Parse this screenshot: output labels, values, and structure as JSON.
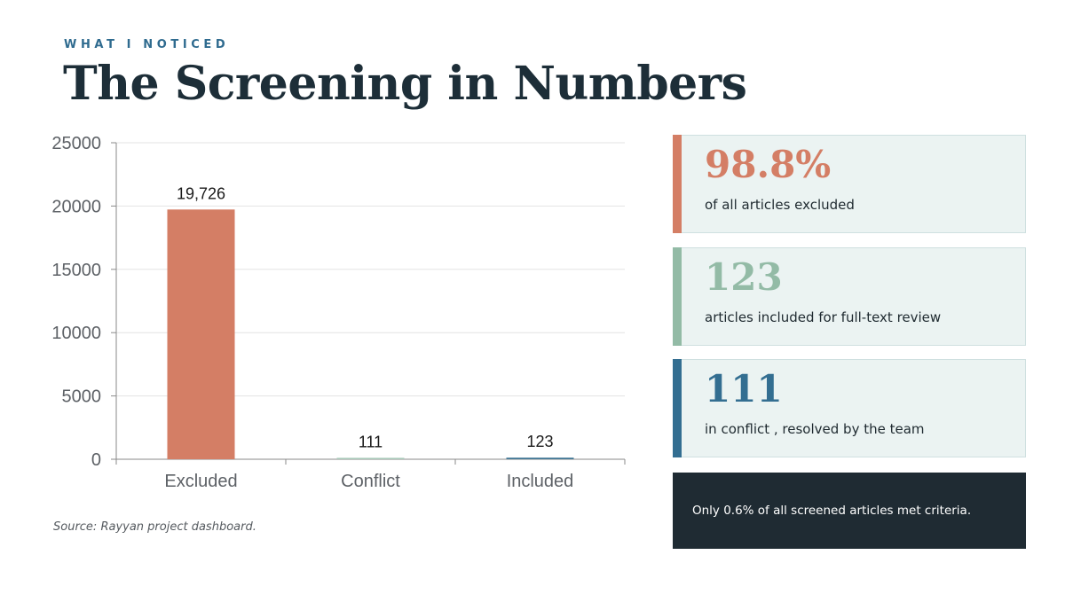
{
  "header": {
    "eyebrow": "WHAT I NOTICED",
    "title": "The Screening in Numbers"
  },
  "chart_data": {
    "type": "bar",
    "categories": [
      "Excluded",
      "Conflict",
      "Included"
    ],
    "values": [
      19726,
      111,
      123
    ],
    "data_labels": [
      "19,726",
      "111",
      "123"
    ],
    "ylim": [
      0,
      25000
    ],
    "yticks": [
      "0",
      "5000",
      "10000",
      "15000",
      "20000",
      "25000"
    ],
    "grid": true,
    "bar_colors": [
      "#d47e65",
      "#a8c8b8",
      "#3f7593"
    ]
  },
  "source": "Source: Rayyan project dashboard.",
  "stats": [
    {
      "value": "98.8%",
      "label": "of all articles excluded",
      "color": "#d47e65"
    },
    {
      "value": "123",
      "label": "articles included for full-text review",
      "color": "#93bba6"
    },
    {
      "value": "111",
      "label": "in conflict , resolved by the team",
      "color": "#336e91"
    }
  ],
  "summary": "Only 0.6% of all screened articles met criteria."
}
